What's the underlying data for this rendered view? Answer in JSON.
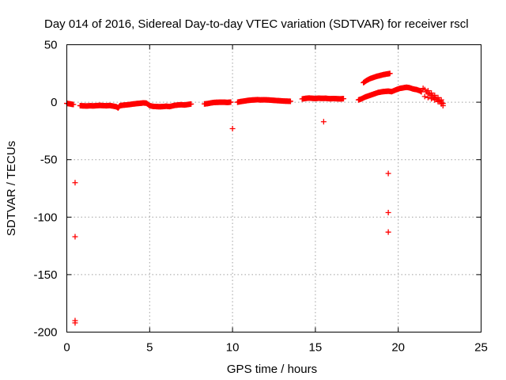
{
  "chart_data": {
    "type": "scatter",
    "title": "Day 014 of 2016, Sidereal Day-to-day VTEC variation (SDTVAR) for receiver rscl",
    "xlabel": "GPS time / hours",
    "ylabel": "SDTVAR / TECUs",
    "xlim": [
      0,
      25
    ],
    "ylim": [
      -200,
      50
    ],
    "xticks": [
      0,
      5,
      10,
      15,
      20,
      25
    ],
    "yticks": [
      50,
      0,
      -50,
      -100,
      -150,
      -200
    ],
    "grid": true,
    "marker": "plus",
    "color": "#ff0000",
    "main_track": [
      [
        0.0,
        -1.0
      ],
      [
        0.2,
        -1.5
      ],
      [
        0.4,
        -2.0
      ],
      [
        0.8,
        -3.0
      ],
      [
        1.0,
        -3.2
      ],
      [
        1.2,
        -3.3
      ],
      [
        1.4,
        -3.1
      ],
      [
        1.6,
        -3.2
      ],
      [
        1.8,
        -3.0
      ],
      [
        2.0,
        -2.8
      ],
      [
        2.2,
        -3.0
      ],
      [
        2.4,
        -3.1
      ],
      [
        2.6,
        -2.9
      ],
      [
        2.8,
        -3.4
      ],
      [
        3.0,
        -4.0
      ],
      [
        3.1,
        -5.0
      ],
      [
        3.2,
        -3.0
      ],
      [
        3.4,
        -2.6
      ],
      [
        3.6,
        -2.3
      ],
      [
        3.8,
        -2.0
      ],
      [
        4.0,
        -1.6
      ],
      [
        4.2,
        -1.2
      ],
      [
        4.4,
        -1.0
      ],
      [
        4.6,
        -0.6
      ],
      [
        4.8,
        -0.8
      ],
      [
        5.0,
        -3.0
      ],
      [
        5.2,
        -3.6
      ],
      [
        5.4,
        -3.8
      ],
      [
        5.6,
        -3.9
      ],
      [
        5.8,
        -3.8
      ],
      [
        6.0,
        -3.5
      ],
      [
        6.2,
        -3.8
      ],
      [
        6.5,
        -2.8
      ],
      [
        6.7,
        -2.4
      ],
      [
        6.9,
        -2.2
      ],
      [
        7.1,
        -2.4
      ],
      [
        7.3,
        -2.0
      ],
      [
        7.5,
        -1.6
      ],
      [
        8.3,
        -1.5
      ],
      [
        8.5,
        -1.2
      ],
      [
        8.7,
        -0.6
      ],
      [
        8.9,
        -0.2
      ],
      [
        9.1,
        -0.1
      ],
      [
        9.3,
        0.0
      ],
      [
        9.5,
        0.0
      ],
      [
        9.7,
        -0.2
      ],
      [
        9.9,
        0.1
      ],
      [
        10.3,
        0.0
      ],
      [
        10.5,
        0.6
      ],
      [
        10.7,
        1.0
      ],
      [
        10.9,
        1.5
      ],
      [
        11.1,
        1.8
      ],
      [
        11.3,
        2.0
      ],
      [
        11.5,
        2.2
      ],
      [
        11.7,
        2.0
      ],
      [
        11.9,
        2.1
      ],
      [
        12.1,
        2.0
      ],
      [
        12.3,
        1.8
      ],
      [
        12.5,
        1.6
      ],
      [
        12.7,
        1.4
      ],
      [
        12.9,
        1.2
      ],
      [
        13.1,
        1.0
      ],
      [
        13.3,
        0.9
      ],
      [
        13.5,
        0.8
      ],
      [
        14.2,
        2.8
      ],
      [
        14.4,
        3.3
      ],
      [
        14.6,
        3.6
      ],
      [
        14.8,
        3.4
      ],
      [
        15.0,
        3.2
      ],
      [
        15.2,
        3.5
      ],
      [
        15.4,
        3.3
      ],
      [
        15.6,
        3.4
      ],
      [
        15.9,
        3.0
      ],
      [
        16.1,
        3.2
      ],
      [
        16.3,
        3.0
      ],
      [
        16.5,
        2.9
      ],
      [
        16.7,
        3.1
      ],
      [
        17.6,
        2.0
      ],
      [
        17.8,
        3.0
      ],
      [
        18.0,
        4.5
      ],
      [
        18.2,
        5.5
      ],
      [
        18.4,
        6.5
      ],
      [
        18.6,
        7.5
      ],
      [
        18.8,
        8.5
      ],
      [
        19.0,
        9.0
      ],
      [
        19.2,
        9.4
      ],
      [
        19.4,
        9.6
      ],
      [
        19.6,
        9.2
      ],
      [
        19.9,
        11.0
      ],
      [
        20.1,
        12.0
      ],
      [
        20.3,
        12.5
      ],
      [
        20.5,
        13.0
      ],
      [
        20.7,
        12.5
      ],
      [
        20.9,
        11.5
      ],
      [
        21.1,
        11.0
      ],
      [
        21.3,
        10.0
      ],
      [
        21.4,
        9.0
      ]
    ],
    "upper_arc": [
      [
        17.9,
        17.0
      ],
      [
        18.1,
        19.0
      ],
      [
        18.3,
        20.5
      ],
      [
        18.5,
        21.5
      ],
      [
        18.7,
        22.5
      ],
      [
        18.9,
        23.2
      ],
      [
        19.1,
        24.0
      ],
      [
        19.3,
        24.5
      ],
      [
        19.5,
        25.0
      ]
    ],
    "descending_band": [
      [
        21.5,
        12.0
      ],
      [
        21.6,
        11.0
      ],
      [
        21.7,
        9.0
      ],
      [
        21.8,
        8.0
      ],
      [
        21.9,
        7.0
      ],
      [
        22.0,
        6.0
      ],
      [
        22.1,
        5.0
      ],
      [
        22.2,
        4.0
      ],
      [
        22.3,
        3.0
      ],
      [
        22.4,
        2.0
      ],
      [
        22.5,
        1.0
      ],
      [
        22.6,
        0.0
      ],
      [
        22.7,
        -1.0
      ],
      [
        21.6,
        5.0
      ],
      [
        21.8,
        4.0
      ],
      [
        22.0,
        3.0
      ],
      [
        22.2,
        2.0
      ],
      [
        22.4,
        0.5
      ],
      [
        22.6,
        -1.5
      ],
      [
        22.7,
        -3.0
      ],
      [
        21.8,
        10.0
      ],
      [
        22.0,
        8.0
      ],
      [
        22.2,
        6.0
      ],
      [
        22.4,
        4.0
      ],
      [
        22.6,
        2.0
      ]
    ],
    "outliers": [
      [
        0.5,
        -70
      ],
      [
        0.5,
        -117
      ],
      [
        0.5,
        -190
      ],
      [
        0.5,
        -192
      ],
      [
        10.0,
        -23
      ],
      [
        15.5,
        -17
      ],
      [
        19.4,
        -62
      ],
      [
        19.4,
        -96
      ],
      [
        19.4,
        -113
      ]
    ]
  }
}
